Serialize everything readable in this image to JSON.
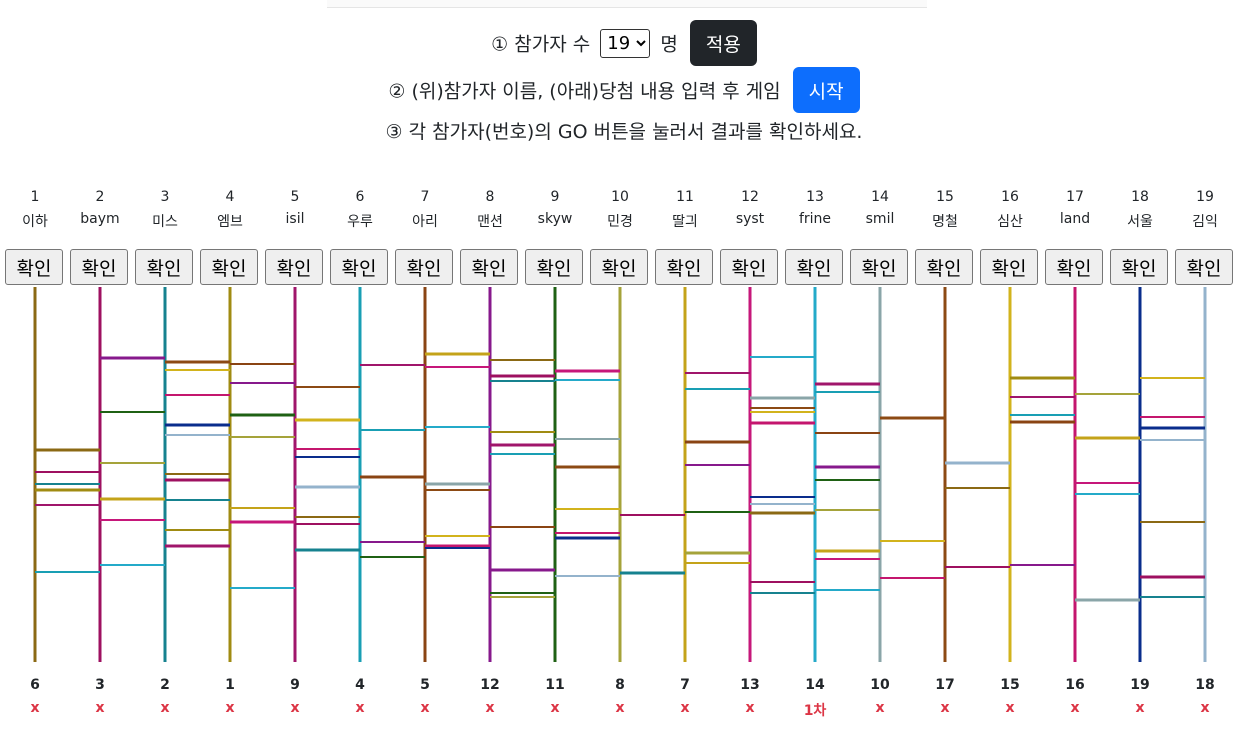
{
  "controls": {
    "step1_prefix": "① 참가자 수",
    "count_value": "19",
    "count_options": [
      "19"
    ],
    "step1_suffix": "명",
    "apply_label": "적용",
    "step2_text": "② (위)참가자 이름, (아래)당첨 내용 입력 후 게임",
    "start_label": "시작",
    "step3_text": "③ 각 참가자(번호)의 GO 버튼을 눌러서 결과를 확인하세요."
  },
  "button_label": "확인",
  "colors": [
    "#8b6914",
    "#9e1060",
    "#16828f",
    "#a08b12",
    "#a0156b",
    "#199fb4",
    "#8a4413",
    "#87198c",
    "#1f6114",
    "#a5a33a",
    "#c4a319",
    "#c6177a",
    "#24aac9",
    "#8aa5a8",
    "#8c4a14",
    "#d2b31c",
    "#c4166e",
    "#0a2d8c",
    "#94b3cc"
  ],
  "participants": [
    {
      "num": "1",
      "name": "이하"
    },
    {
      "num": "2",
      "name": "baym"
    },
    {
      "num": "3",
      "name": "미스"
    },
    {
      "num": "4",
      "name": "엠브"
    },
    {
      "num": "5",
      "name": "isil"
    },
    {
      "num": "6",
      "name": "우루"
    },
    {
      "num": "7",
      "name": "아리"
    },
    {
      "num": "8",
      "name": "맨션"
    },
    {
      "num": "9",
      "name": "skyw"
    },
    {
      "num": "10",
      "name": "민경"
    },
    {
      "num": "11",
      "name": "딸긔"
    },
    {
      "num": "12",
      "name": "syst"
    },
    {
      "num": "13",
      "name": "frine"
    },
    {
      "num": "14",
      "name": "smil"
    },
    {
      "num": "15",
      "name": "명철"
    },
    {
      "num": "16",
      "name": "심산"
    },
    {
      "num": "17",
      "name": "land"
    },
    {
      "num": "18",
      "name": "서울"
    },
    {
      "num": "19",
      "name": "김익"
    }
  ],
  "results": [
    {
      "num": "6",
      "prize": "x"
    },
    {
      "num": "3",
      "prize": "x"
    },
    {
      "num": "2",
      "prize": "x"
    },
    {
      "num": "1",
      "prize": "x"
    },
    {
      "num": "9",
      "prize": "x"
    },
    {
      "num": "4",
      "prize": "x"
    },
    {
      "num": "5",
      "prize": "x"
    },
    {
      "num": "12",
      "prize": "x"
    },
    {
      "num": "11",
      "prize": "x"
    },
    {
      "num": "8",
      "prize": "x"
    },
    {
      "num": "7",
      "prize": "x"
    },
    {
      "num": "13",
      "prize": "x"
    },
    {
      "num": "14",
      "prize": "1차"
    },
    {
      "num": "10",
      "prize": "x"
    },
    {
      "num": "17",
      "prize": "x"
    },
    {
      "num": "15",
      "prize": "x"
    },
    {
      "num": "16",
      "prize": "x"
    },
    {
      "num": "19",
      "prize": "x"
    },
    {
      "num": "18",
      "prize": "x"
    }
  ]
}
